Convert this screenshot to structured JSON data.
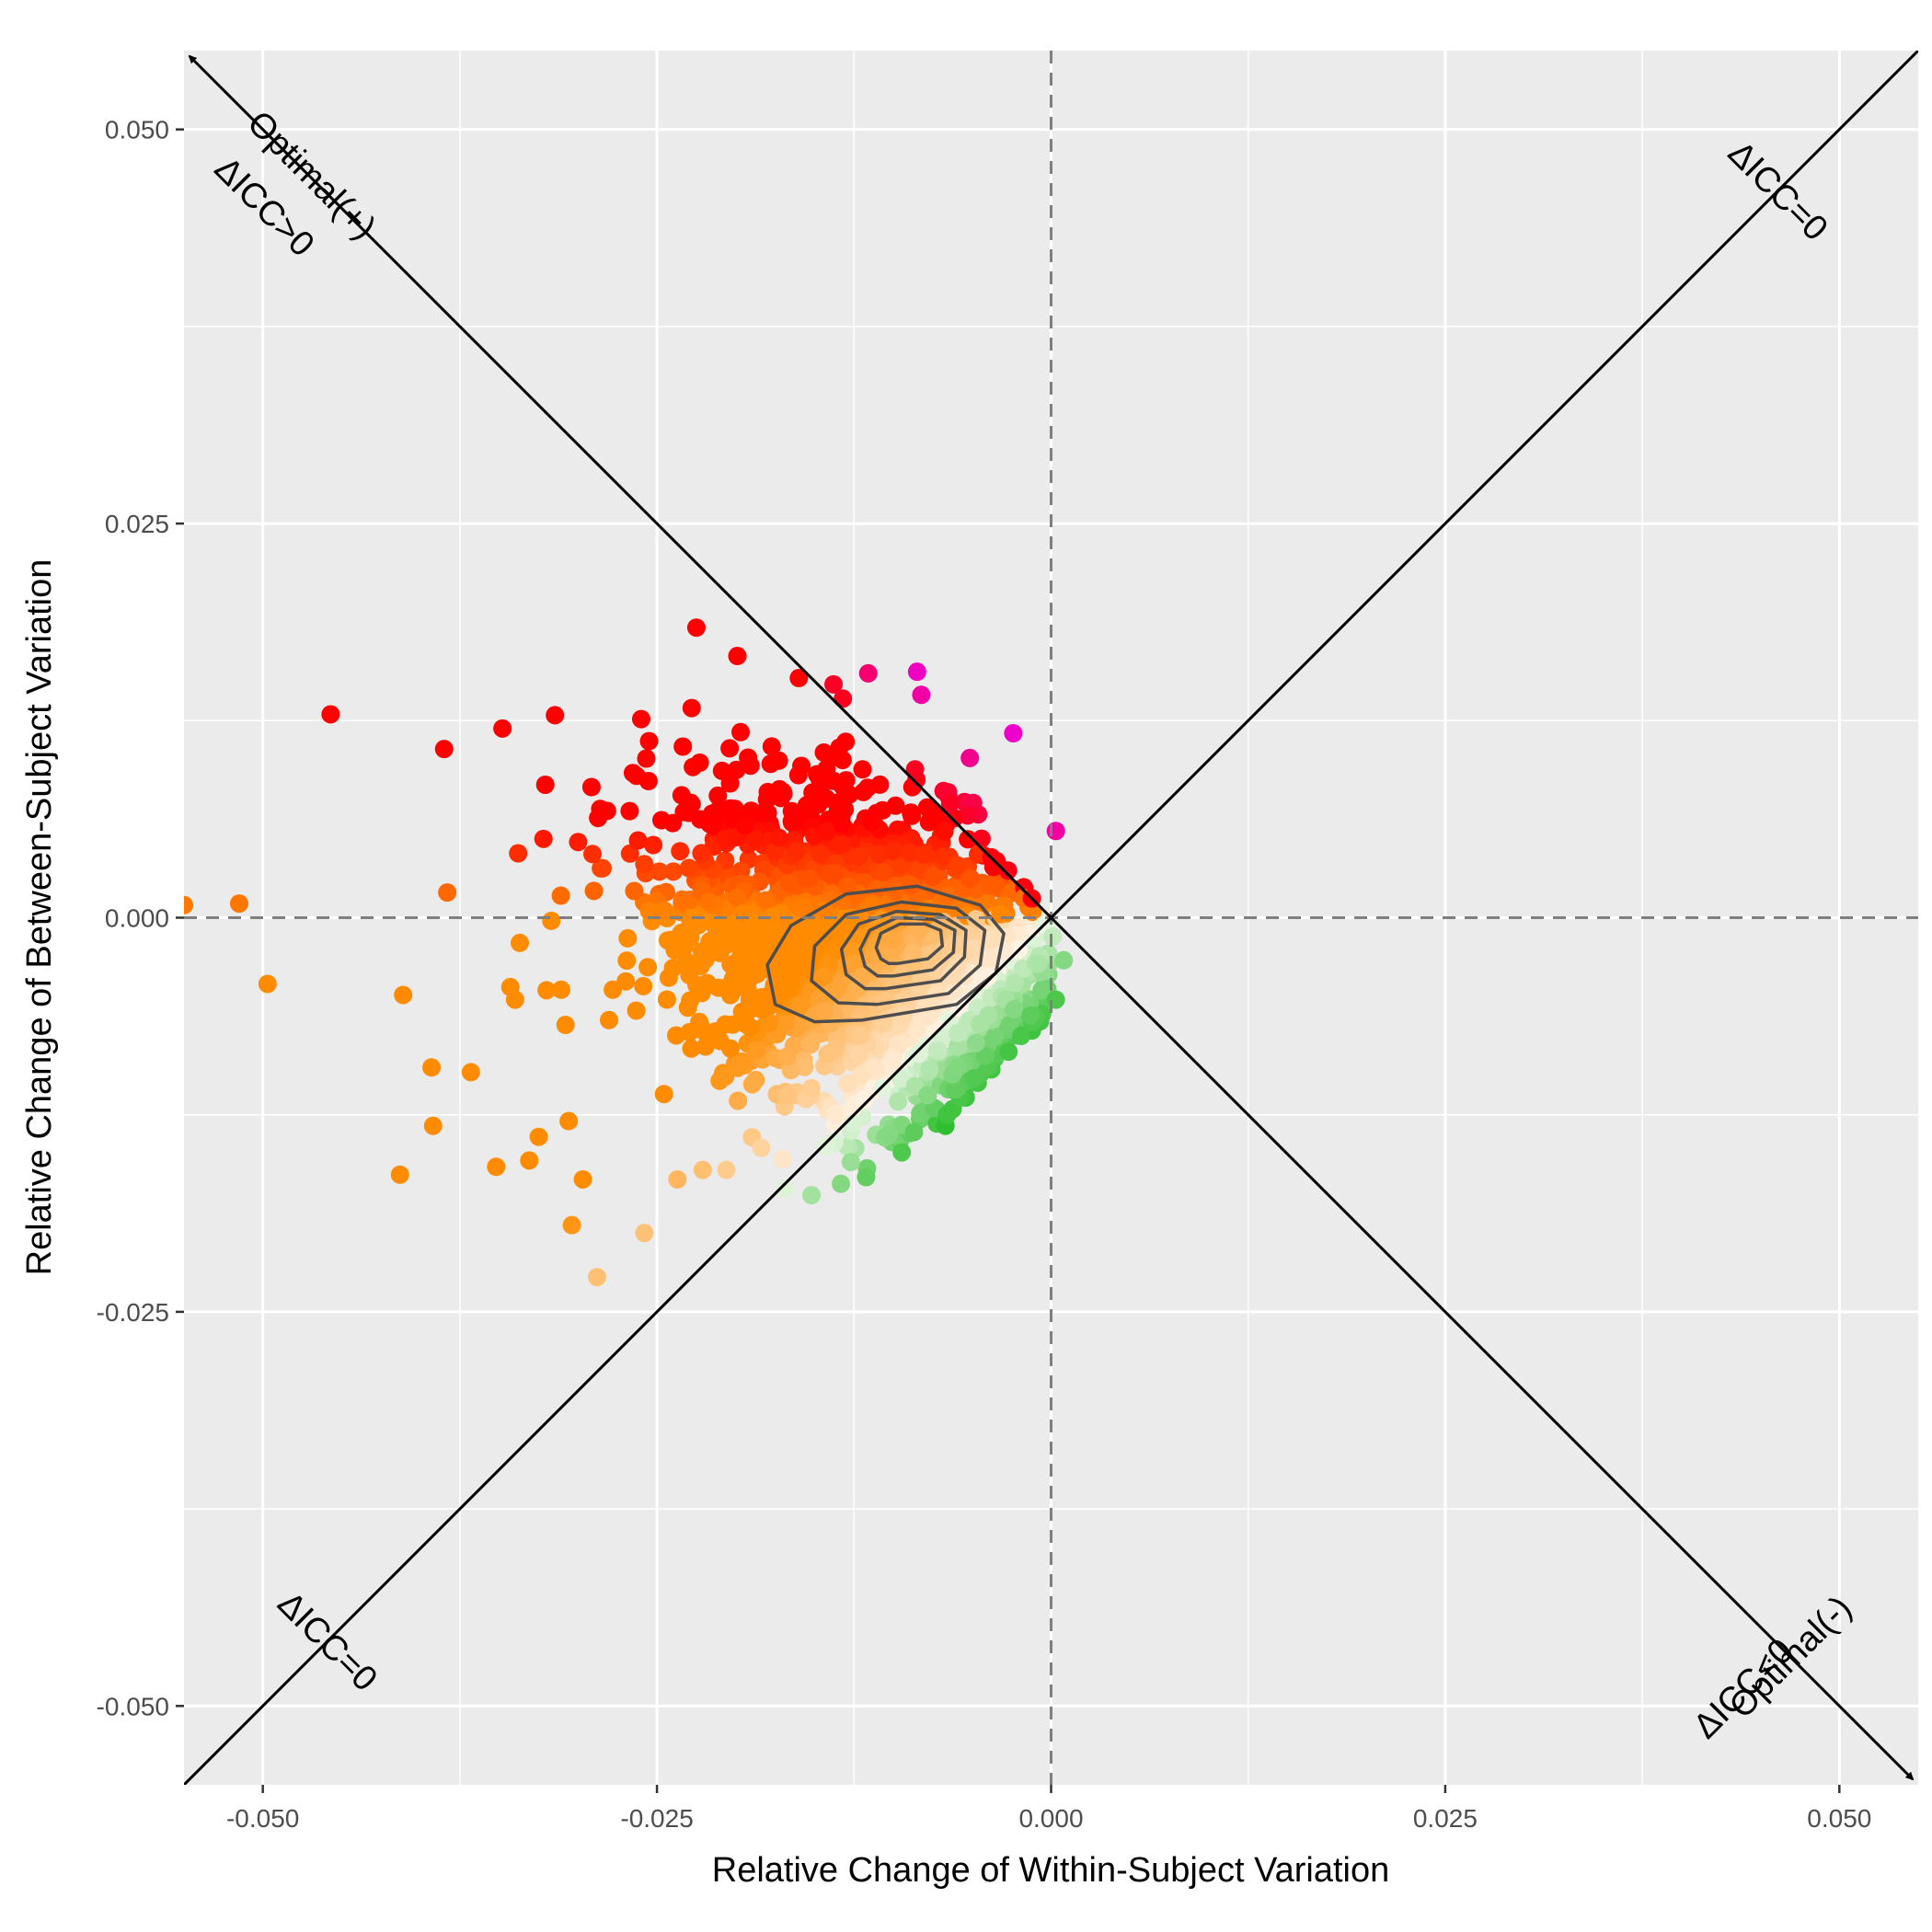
{
  "chart_data": {
    "type": "scatter",
    "xlabel": "Relative Change of Within-Subject Variation",
    "ylabel": "Relative Change of Between-Subject Variation",
    "xlim": [
      -0.055,
      0.055
    ],
    "ylim": [
      -0.055,
      0.055
    ],
    "x_ticks": [
      -0.05,
      -0.025,
      0.0,
      0.025,
      0.05
    ],
    "y_ticks": [
      -0.05,
      -0.025,
      0.0,
      0.025,
      0.05
    ],
    "x_tick_labels": [
      "-0.050",
      "-0.025",
      "0.000",
      "0.025",
      "0.050"
    ],
    "y_tick_labels": [
      "-0.050",
      "-0.025",
      "0.000",
      "0.025",
      "0.050"
    ],
    "grid": true,
    "legend": "none",
    "colors": {
      "panel_background": "#ebebeb",
      "grid": "#ffffff",
      "reference_lines": "#000000",
      "dashed_zero_lines": "#7f7f7f",
      "contour": "#4d4d4d",
      "icc_increase_high": "#ff0000",
      "icc_increase_low": "#ff8c00",
      "icc_increase_optimal": "#ee00cc",
      "icc_decrease": "#22bb22",
      "near_zero": "#ffffff"
    },
    "reference_lines": [
      {
        "type": "dashed",
        "orientation": "vertical",
        "x": 0.0
      },
      {
        "type": "dashed",
        "orientation": "horizontal",
        "y": 0.0
      },
      {
        "type": "solid",
        "slope": 1,
        "intercept": 0
      },
      {
        "type": "solid-arrows",
        "slope": -1,
        "intercept": 0
      }
    ],
    "annotations": [
      {
        "text": "Optimal(+)",
        "x": -0.047,
        "y": 0.047,
        "angle": -45
      },
      {
        "text": "ΔICC>0",
        "x": -0.05,
        "y": 0.045,
        "angle": -45
      },
      {
        "text": "ΔICC=0",
        "x": 0.046,
        "y": 0.046,
        "angle": -45
      },
      {
        "text": "ΔICC=0",
        "x": -0.046,
        "y": -0.046,
        "angle": -45
      },
      {
        "text": "Optimal(-)",
        "x": 0.047,
        "y": -0.047,
        "angle": 45
      },
      {
        "text": "ΔICC<0",
        "x": 0.044,
        "y": -0.049,
        "angle": 45
      }
    ],
    "points": [
      {
        "x": -0.055,
        "y": 0.0008
      },
      {
        "x": -0.0515,
        "y": 0.0009
      },
      {
        "x": -0.0497,
        "y": -0.0042
      },
      {
        "x": -0.0457,
        "y": 0.0129
      },
      {
        "x": -0.0385,
        "y": 0.0107
      },
      {
        "x": -0.0348,
        "y": 0.012
      },
      {
        "x": -0.0413,
        "y": -0.0163
      },
      {
        "x": -0.0392,
        "y": -0.0132
      },
      {
        "x": -0.0393,
        "y": -0.0095
      },
      {
        "x": -0.0411,
        "y": -0.0049
      },
      {
        "x": -0.0383,
        "y": 0.0016
      },
      {
        "x": -0.0368,
        "y": -0.0098
      },
      {
        "x": -0.0352,
        "y": -0.0158
      },
      {
        "x": -0.0331,
        "y": -0.0154
      },
      {
        "x": -0.0325,
        "y": -0.0139
      },
      {
        "x": -0.0306,
        "y": -0.0129
      },
      {
        "x": -0.0297,
        "y": -0.0166
      },
      {
        "x": -0.0304,
        "y": -0.0195
      },
      {
        "x": -0.0288,
        "y": -0.0228
      },
      {
        "x": -0.0258,
        "y": -0.02
      },
      {
        "x": -0.0237,
        "y": -0.0166
      },
      {
        "x": -0.0221,
        "y": -0.016
      },
      {
        "x": -0.0206,
        "y": -0.016
      },
      {
        "x": -0.0152,
        "y": -0.0176
      },
      {
        "x": -0.0127,
        "y": -0.0155
      },
      {
        "x": -0.0103,
        "y": -0.0138
      },
      {
        "x": -0.0087,
        "y": -0.0136
      },
      {
        "x": -0.0067,
        "y": -0.0132
      },
      {
        "x": -0.0066,
        "y": -0.0125
      },
      {
        "x": -0.0049,
        "y": -0.0102
      },
      {
        "x": -0.0027,
        "y": -0.0085
      },
      {
        "x": -0.0019,
        "y": -0.0075
      },
      {
        "x": -0.0013,
        "y": -0.0062
      },
      {
        "x": -0.0006,
        "y": -0.0046
      },
      {
        "x": 0.0003,
        "y": -0.0052
      },
      {
        "x": 0.0008,
        "y": -0.0027
      },
      {
        "x": 0.0001,
        "y": -0.0012
      },
      {
        "x": 0.0003,
        "y": 0.0055
      },
      {
        "x": -0.0024,
        "y": 0.0117
      },
      {
        "x": -0.0085,
        "y": 0.0156
      },
      {
        "x": -0.0116,
        "y": 0.0155
      },
      {
        "x": -0.0138,
        "y": 0.0148
      },
      {
        "x": -0.016,
        "y": 0.0152
      },
      {
        "x": -0.0199,
        "y": 0.0166
      },
      {
        "x": -0.0225,
        "y": 0.0184
      },
      {
        "x": -0.0228,
        "y": 0.0133
      },
      {
        "x": -0.026,
        "y": 0.0126
      },
      {
        "x": -0.0255,
        "y": 0.0112
      },
      {
        "x": -0.0263,
        "y": 0.009
      },
      {
        "x": -0.0286,
        "y": 0.0069
      },
      {
        "x": -0.03,
        "y": 0.0048
      },
      {
        "x": -0.0322,
        "y": 0.005
      },
      {
        "x": -0.0311,
        "y": 0.0014
      },
      {
        "x": -0.029,
        "y": 0.0017
      },
      {
        "x": -0.0317,
        "y": -0.0002
      },
      {
        "x": -0.0337,
        "y": -0.0016
      },
      {
        "x": -0.0343,
        "y": -0.0044
      },
      {
        "x": -0.034,
        "y": -0.0052
      },
      {
        "x": -0.032,
        "y": -0.0046
      },
      {
        "x": -0.0308,
        "y": -0.0068
      },
      {
        "x": -0.0262,
        "y": 0.0049
      },
      {
        "x": -0.0258,
        "y": 0.0034
      },
      {
        "x": -0.024,
        "y": 0.006
      },
      {
        "x": -0.0228,
        "y": 0.0072
      }
    ],
    "density_contours": [
      [
        [
          -0.012,
          -0.0065
        ],
        [
          -0.006,
          -0.0055
        ],
        [
          -0.0035,
          -0.0035
        ],
        [
          -0.003,
          -0.001
        ],
        [
          -0.0045,
          0.0008
        ],
        [
          -0.0085,
          0.002
        ],
        [
          -0.013,
          0.0015
        ],
        [
          -0.0165,
          -0.0005
        ],
        [
          -0.018,
          -0.003
        ],
        [
          -0.0175,
          -0.0055
        ],
        [
          -0.015,
          -0.0066
        ],
        [
          -0.012,
          -0.0065
        ]
      ],
      [
        [
          -0.011,
          -0.0055
        ],
        [
          -0.0065,
          -0.0048
        ],
        [
          -0.0045,
          -0.003
        ],
        [
          -0.0042,
          -0.0008
        ],
        [
          -0.006,
          0.0006
        ],
        [
          -0.0095,
          0.001
        ],
        [
          -0.013,
          0.0002
        ],
        [
          -0.015,
          -0.0018
        ],
        [
          -0.0152,
          -0.004
        ],
        [
          -0.0135,
          -0.0054
        ],
        [
          -0.011,
          -0.0055
        ]
      ],
      [
        [
          -0.0105,
          -0.0045
        ],
        [
          -0.007,
          -0.004
        ],
        [
          -0.0055,
          -0.0025
        ],
        [
          -0.0054,
          -0.0008
        ],
        [
          -0.007,
          0.0002
        ],
        [
          -0.0098,
          0.0004
        ],
        [
          -0.0122,
          -0.0004
        ],
        [
          -0.0133,
          -0.002
        ],
        [
          -0.013,
          -0.0036
        ],
        [
          -0.0118,
          -0.0045
        ],
        [
          -0.0105,
          -0.0045
        ]
      ],
      [
        [
          -0.01,
          -0.0037
        ],
        [
          -0.0075,
          -0.0033
        ],
        [
          -0.0062,
          -0.0022
        ],
        [
          -0.0061,
          -0.0008
        ],
        [
          -0.0075,
          -0.0001
        ],
        [
          -0.0098,
          0.0
        ],
        [
          -0.0115,
          -0.0008
        ],
        [
          -0.0121,
          -0.002
        ],
        [
          -0.0118,
          -0.0031
        ],
        [
          -0.011,
          -0.0037
        ],
        [
          -0.01,
          -0.0037
        ]
      ],
      [
        [
          -0.0097,
          -0.0029
        ],
        [
          -0.0078,
          -0.0026
        ],
        [
          -0.0069,
          -0.0018
        ],
        [
          -0.007,
          -0.0008
        ],
        [
          -0.008,
          -0.0004
        ],
        [
          -0.0096,
          -0.0004
        ],
        [
          -0.0108,
          -0.001
        ],
        [
          -0.0111,
          -0.0019
        ],
        [
          -0.0108,
          -0.0026
        ],
        [
          -0.0103,
          -0.0029
        ],
        [
          -0.0097,
          -0.0029
        ]
      ]
    ]
  }
}
